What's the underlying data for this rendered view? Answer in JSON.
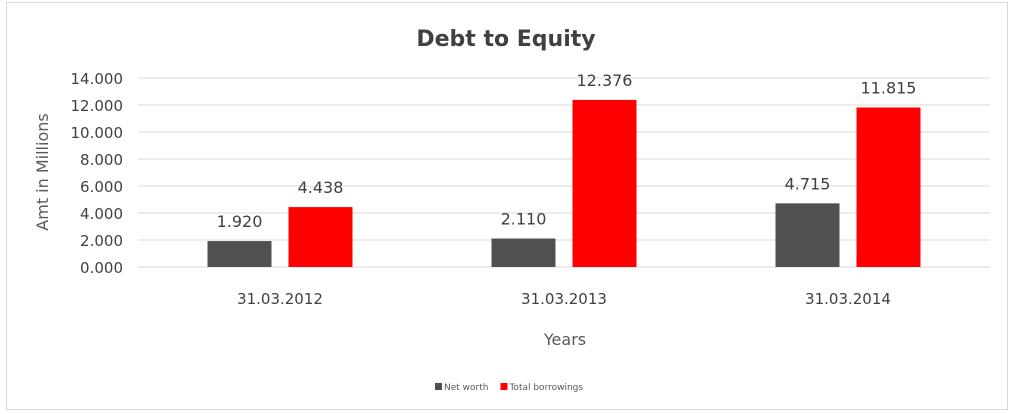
{
  "chart_data": {
    "type": "bar",
    "title": "Debt to Equity",
    "xlabel": "Years",
    "ylabel": "Amt in Millions",
    "categories": [
      "31.03.2012",
      "31.03.2013",
      "31.03.2014"
    ],
    "series": [
      {
        "name": "Net worth",
        "values": [
          1.92,
          2.11,
          4.715
        ],
        "color": "#505050",
        "labels": [
          "1.920",
          "2.110",
          "4.715"
        ]
      },
      {
        "name": "Total borrowings",
        "values": [
          4.438,
          12.376,
          11.815
        ],
        "color": "#ff0000",
        "labels": [
          "4.438",
          "12.376",
          "11.815"
        ]
      }
    ],
    "ylim": [
      0,
      14
    ],
    "yticks": [
      "0.000",
      "2.000",
      "4.000",
      "6.000",
      "8.000",
      "10.000",
      "12.000",
      "14.000"
    ],
    "grid": true,
    "legend": "bottom"
  }
}
